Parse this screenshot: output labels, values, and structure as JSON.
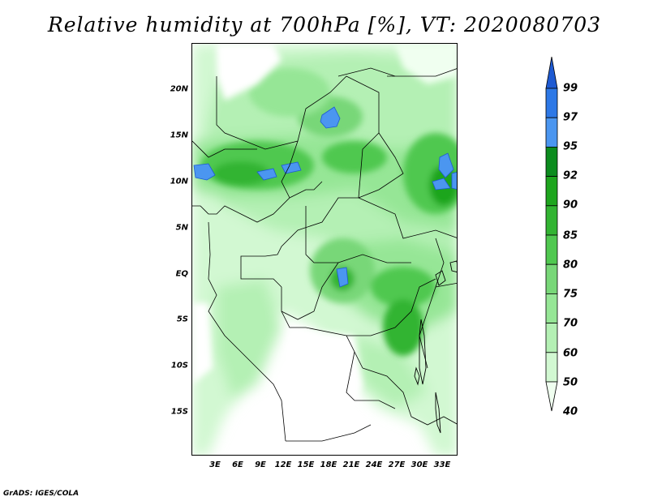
{
  "title": "Relative humidity at 700hPa [%], VT: 2020080703",
  "footer": "GrADS: IGES/COLA",
  "lat_labels": [
    "20N",
    "15N",
    "10N",
    "5N",
    "EQ",
    "5S",
    "10S",
    "15S"
  ],
  "lon_labels": [
    "3E",
    "6E",
    "9E",
    "12E",
    "15E",
    "18E",
    "21E",
    "24E",
    "27E",
    "30E",
    "33E"
  ],
  "colorbar": {
    "labels": [
      "99",
      "97",
      "95",
      "92",
      "90",
      "85",
      "80",
      "75",
      "70",
      "60",
      "50",
      "40"
    ],
    "colors": [
      "#1e5ad2",
      "#2d78e6",
      "#4b96f0",
      "#0c8c1e",
      "#1ea51e",
      "#32b432",
      "#50c850",
      "#78d778",
      "#96e696",
      "#b4f0b4",
      "#d2f8d2",
      "#f0fff0"
    ]
  }
}
